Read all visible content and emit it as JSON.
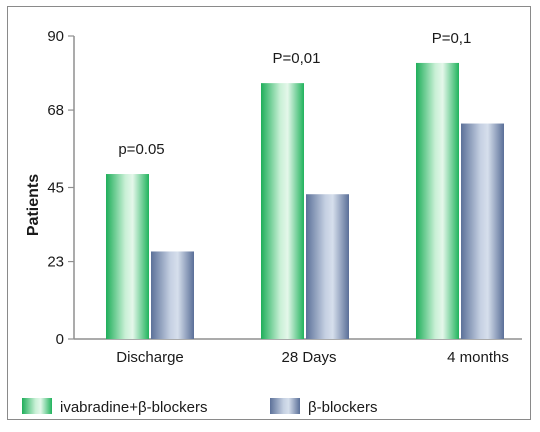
{
  "chart_data": {
    "type": "bar",
    "categories": [
      "Discharge",
      "28 Days",
      "4 months"
    ],
    "series": [
      {
        "name": "ivabradine+β-blockers",
        "values": [
          49,
          76,
          82
        ],
        "color": "#2fbf6a"
      },
      {
        "name": "β-blockers",
        "values": [
          26,
          43,
          64
        ],
        "color": "#6f83ab"
      }
    ],
    "annotations": [
      "p=0.05",
      "P=0,01",
      "P=0,1"
    ],
    "yticks": [
      0,
      23,
      45,
      68,
      90
    ],
    "ylim": [
      0,
      90
    ],
    "ylabel": "Patients",
    "xlabel": "",
    "title": "",
    "legend": "bottom-left",
    "grid": false
  }
}
